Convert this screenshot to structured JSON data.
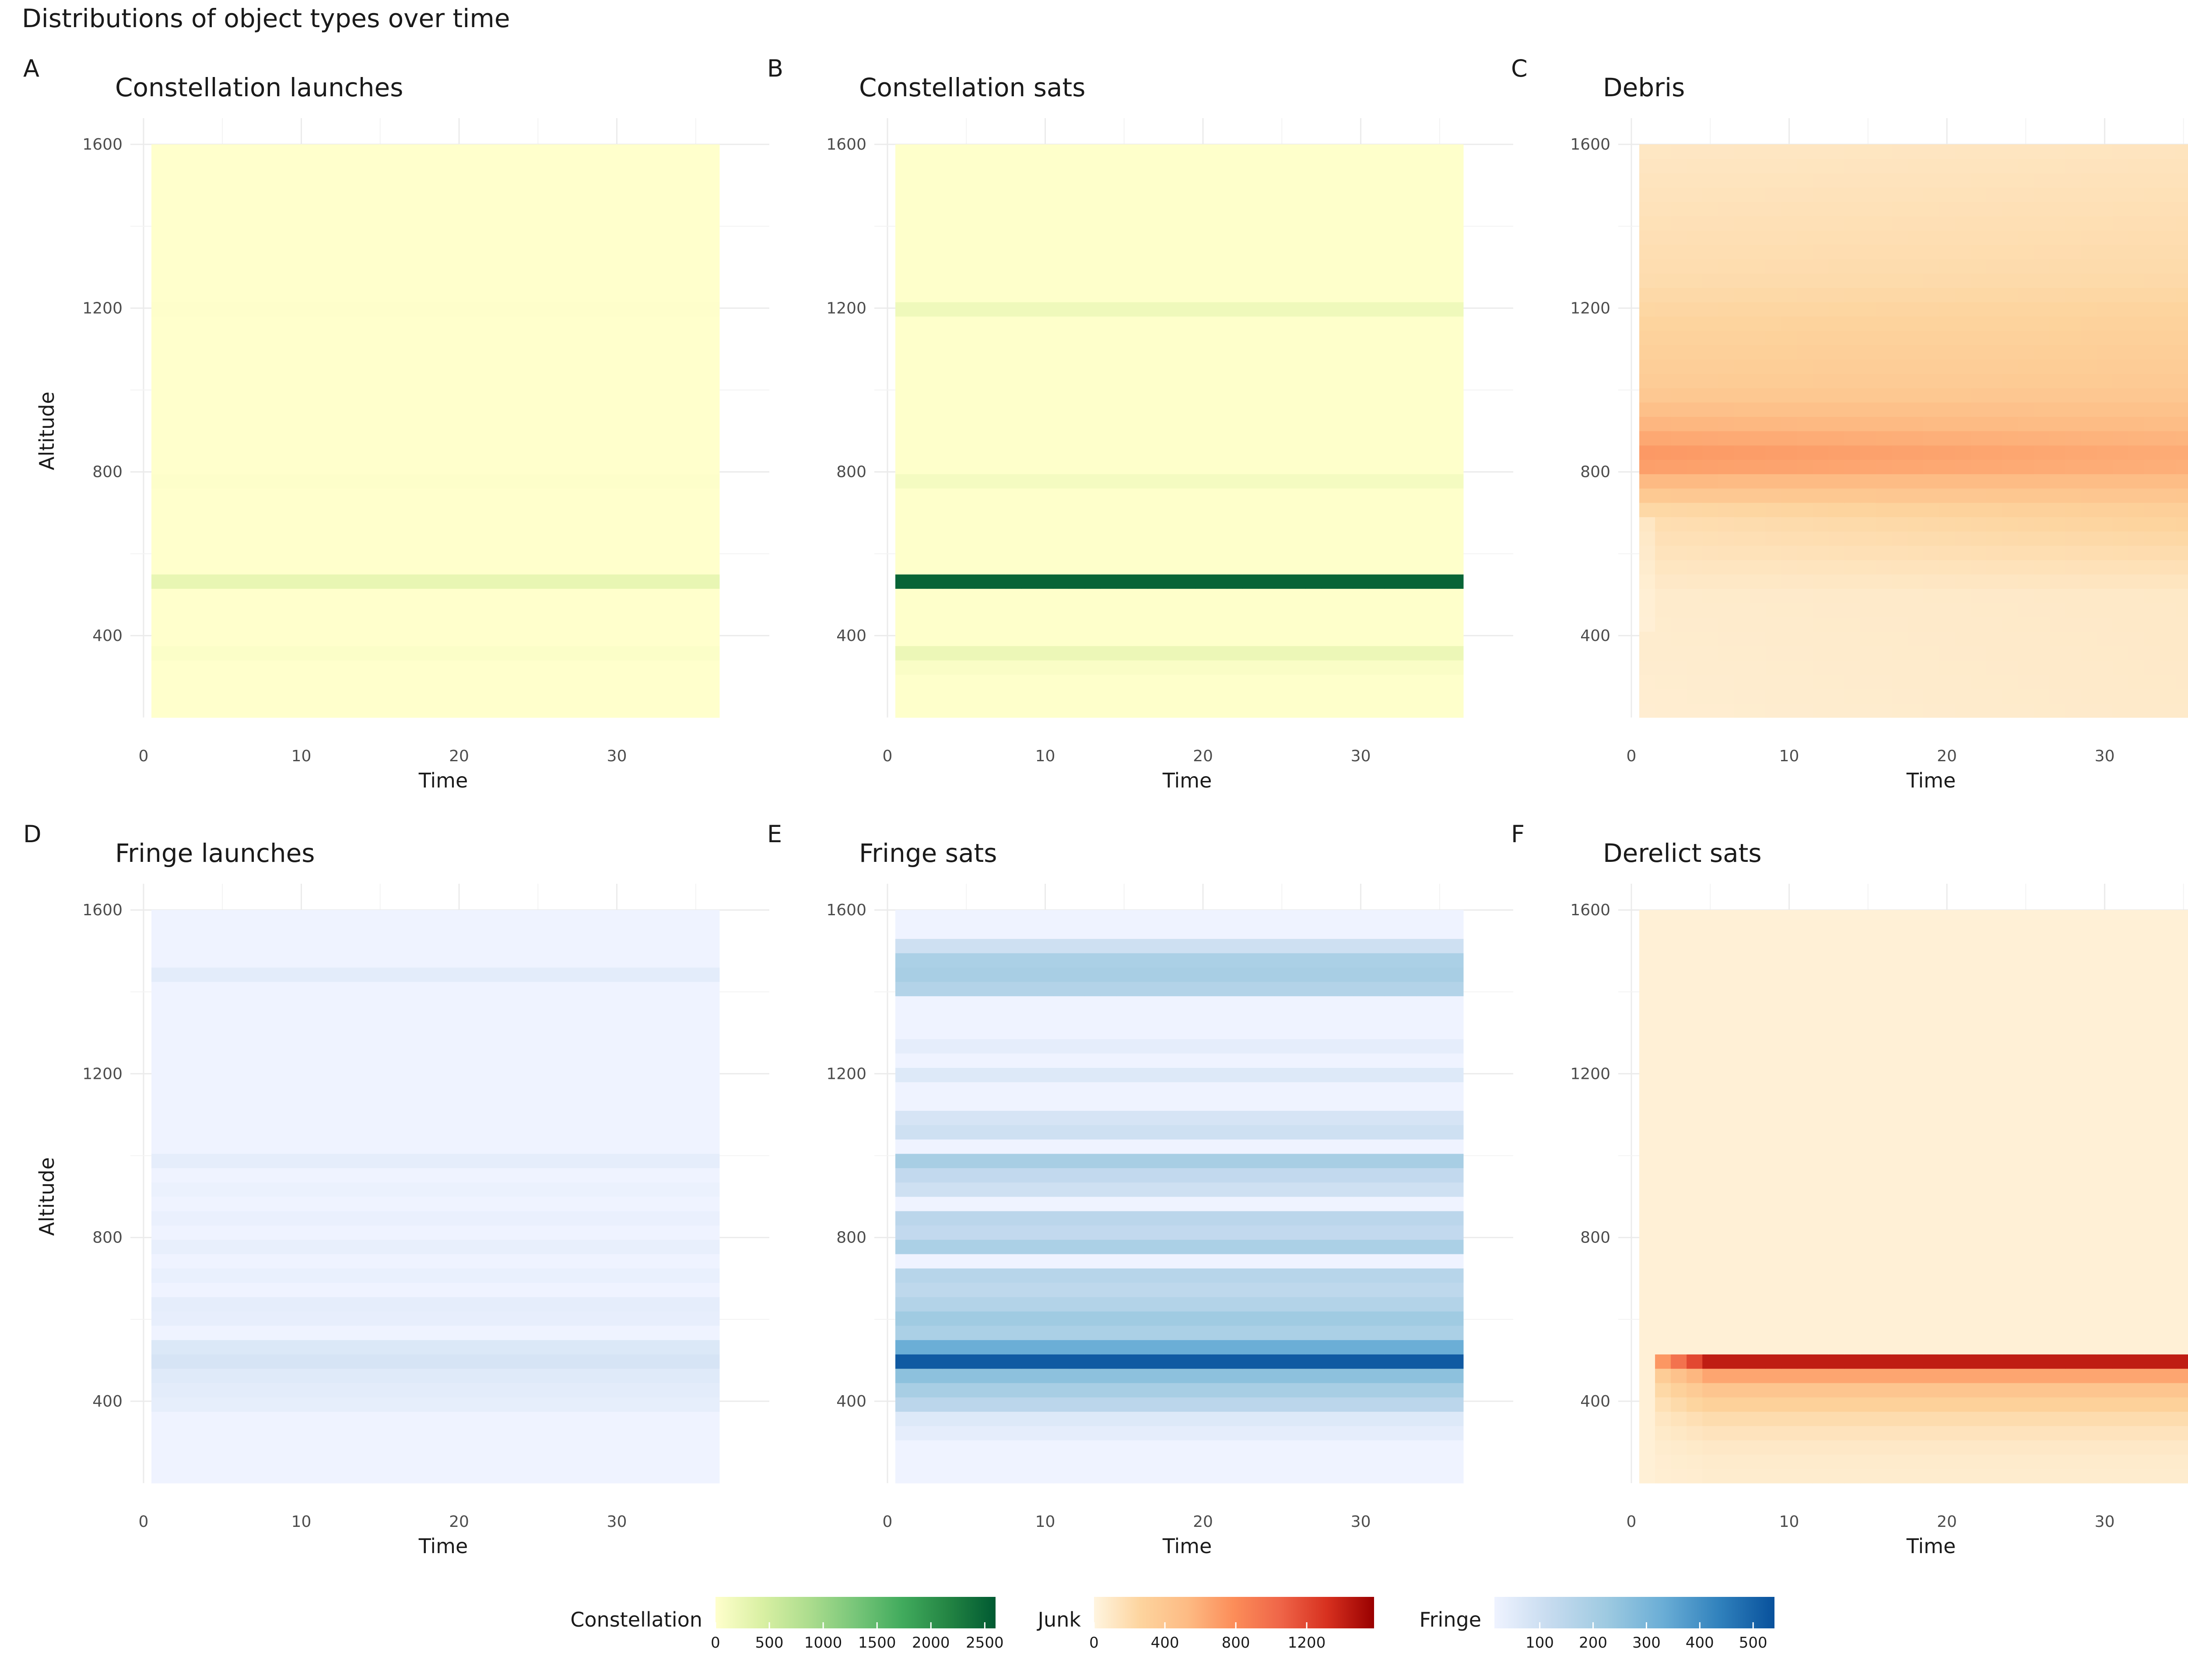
{
  "figure_title": "Distributions of object types over time",
  "chart_data": [
    {
      "type": "heatmap",
      "tag": "A",
      "title": "Constellation launches",
      "xlabel": "Time",
      "ylabel": "Altitude",
      "xlim": [
        0,
        38
      ],
      "ylim": [
        200,
        1600
      ],
      "xticks": [
        0,
        10,
        20,
        30
      ],
      "yticks": [
        400,
        800,
        1200,
        1600
      ],
      "time_range": [
        1,
        36
      ],
      "altitude_range": [
        200,
        1600
      ],
      "bin_height": 35,
      "scale": "Constellation",
      "bands": [
        {
          "altitude": 535,
          "value": 260
        },
        {
          "altitude": 360,
          "value": 40
        },
        {
          "altitude": 780,
          "value": 20
        },
        {
          "altitude": 1190,
          "value": 15
        }
      ],
      "background_value": 5
    },
    {
      "type": "heatmap",
      "tag": "B",
      "title": "Constellation sats",
      "xlabel": "Time",
      "ylabel": "",
      "xlim": [
        0,
        38
      ],
      "ylim": [
        200,
        1600
      ],
      "xticks": [
        0,
        10,
        20,
        30
      ],
      "yticks": [
        400,
        800,
        1200,
        1600
      ],
      "time_range": [
        1,
        36
      ],
      "altitude_range": [
        200,
        1600
      ],
      "bin_height": 35,
      "scale": "Constellation",
      "bands": [
        {
          "altitude": 535,
          "value": 2500
        },
        {
          "altitude": 360,
          "value": 220
        },
        {
          "altitude": 1200,
          "value": 180
        },
        {
          "altitude": 780,
          "value": 120
        },
        {
          "altitude": 325,
          "value": 60
        }
      ],
      "background_value": 10
    },
    {
      "type": "heatmap",
      "tag": "C",
      "title": "Debris",
      "xlabel": "Time",
      "ylabel": "",
      "xlim": [
        0,
        38
      ],
      "ylim": [
        200,
        1600
      ],
      "xticks": [
        0,
        10,
        20,
        30
      ],
      "yticks": [
        400,
        800,
        1200,
        1600
      ],
      "time_range": [
        1,
        36
      ],
      "altitude_range": [
        200,
        1600
      ],
      "bin_height": 35,
      "scale": "Junk",
      "profile_early": [
        {
          "altitude": 200,
          "value": 60
        },
        {
          "altitude": 500,
          "value": 80
        },
        {
          "altitude": 700,
          "value": 200
        },
        {
          "altitude": 830,
          "value": 760
        },
        {
          "altitude": 1000,
          "value": 360
        },
        {
          "altitude": 1270,
          "value": 200
        },
        {
          "altitude": 1600,
          "value": 110
        }
      ],
      "profile_late": [
        {
          "altitude": 200,
          "value": 90
        },
        {
          "altitude": 500,
          "value": 100
        },
        {
          "altitude": 700,
          "value": 300
        },
        {
          "altitude": 830,
          "value": 640
        },
        {
          "altitude": 1000,
          "value": 380
        },
        {
          "altitude": 1270,
          "value": 220
        },
        {
          "altitude": 1600,
          "value": 130
        }
      ]
    },
    {
      "type": "heatmap",
      "tag": "D",
      "title": "Fringe launches",
      "xlabel": "Time",
      "ylabel": "Altitude",
      "xlim": [
        0,
        38
      ],
      "ylim": [
        200,
        1600
      ],
      "xticks": [
        0,
        10,
        20,
        30
      ],
      "yticks": [
        400,
        800,
        1200,
        1600
      ],
      "time_range": [
        1,
        36
      ],
      "altitude_range": [
        200,
        1600
      ],
      "bin_height": 35,
      "scale": "Fringe",
      "bands": [
        {
          "altitude": 500,
          "value": 80
        },
        {
          "altitude": 535,
          "value": 65
        },
        {
          "altitude": 465,
          "value": 55
        },
        {
          "altitude": 430,
          "value": 45
        },
        {
          "altitude": 395,
          "value": 38
        },
        {
          "altitude": 1440,
          "value": 45
        },
        {
          "altitude": 990,
          "value": 40
        },
        {
          "altitude": 640,
          "value": 40
        },
        {
          "altitude": 605,
          "value": 35
        },
        {
          "altitude": 710,
          "value": 30
        },
        {
          "altitude": 780,
          "value": 32
        },
        {
          "altitude": 850,
          "value": 28
        },
        {
          "altitude": 920,
          "value": 25
        }
      ],
      "background_value": 8
    },
    {
      "type": "heatmap",
      "tag": "E",
      "title": "Fringe sats",
      "xlabel": "Time",
      "ylabel": "",
      "xlim": [
        0,
        38
      ],
      "ylim": [
        200,
        1600
      ],
      "xticks": [
        0,
        10,
        20,
        30
      ],
      "yticks": [
        400,
        800,
        1200,
        1600
      ],
      "time_range": [
        1,
        36
      ],
      "altitude_range": [
        200,
        1600
      ],
      "bin_height": 35,
      "scale": "Fringe",
      "bands": [
        {
          "altitude": 500,
          "value": 520
        },
        {
          "altitude": 535,
          "value": 330
        },
        {
          "altitude": 465,
          "value": 260
        },
        {
          "altitude": 430,
          "value": 200
        },
        {
          "altitude": 395,
          "value": 150
        },
        {
          "altitude": 570,
          "value": 190
        },
        {
          "altitude": 605,
          "value": 220
        },
        {
          "altitude": 640,
          "value": 170
        },
        {
          "altitude": 675,
          "value": 140
        },
        {
          "altitude": 710,
          "value": 160
        },
        {
          "altitude": 780,
          "value": 190
        },
        {
          "altitude": 815,
          "value": 130
        },
        {
          "altitude": 850,
          "value": 150
        },
        {
          "altitude": 920,
          "value": 100
        },
        {
          "altitude": 955,
          "value": 130
        },
        {
          "altitude": 990,
          "value": 200
        },
        {
          "altitude": 1060,
          "value": 100
        },
        {
          "altitude": 1095,
          "value": 80
        },
        {
          "altitude": 1200,
          "value": 60
        },
        {
          "altitude": 1270,
          "value": 40
        },
        {
          "altitude": 1405,
          "value": 170
        },
        {
          "altitude": 1440,
          "value": 200
        },
        {
          "altitude": 1475,
          "value": 190
        },
        {
          "altitude": 1510,
          "value": 100
        },
        {
          "altitude": 360,
          "value": 60
        },
        {
          "altitude": 325,
          "value": 40
        }
      ],
      "background_value": 15
    },
    {
      "type": "heatmap",
      "tag": "F",
      "title": "Derelict sats",
      "xlabel": "Time",
      "ylabel": "",
      "xlim": [
        0,
        38
      ],
      "ylim": [
        200,
        1600
      ],
      "xticks": [
        0,
        10,
        20,
        30
      ],
      "yticks": [
        400,
        800,
        1200,
        1600
      ],
      "time_range": [
        1,
        36
      ],
      "altitude_range": [
        200,
        1600
      ],
      "bin_height": 35,
      "scale": "Junk",
      "bands": [
        {
          "altitude": 500,
          "value": 1420
        },
        {
          "altitude": 465,
          "value": 650
        },
        {
          "altitude": 430,
          "value": 420
        },
        {
          "altitude": 395,
          "value": 300
        },
        {
          "altitude": 360,
          "value": 200
        },
        {
          "altitude": 325,
          "value": 140
        },
        {
          "altitude": 290,
          "value": 100
        },
        {
          "altitude": 255,
          "value": 80
        },
        {
          "altitude": 220,
          "value": 70
        }
      ],
      "onset_time": 2,
      "background_value": 40
    }
  ],
  "legends": [
    {
      "title": "Constellation",
      "min": 0,
      "max": 2600,
      "ticks": [
        0,
        500,
        1000,
        1500,
        2000,
        2500
      ],
      "colors": [
        "#ffffcc",
        "#d9f0a3",
        "#addd8e",
        "#78c679",
        "#41ab5d",
        "#238443",
        "#005a32"
      ]
    },
    {
      "title": "Junk",
      "min": 0,
      "max": 1580,
      "ticks": [
        0,
        400,
        800,
        1200
      ],
      "colors": [
        "#fff5e0",
        "#fdd49e",
        "#fdbb84",
        "#fc8d59",
        "#ef6548",
        "#d7301f",
        "#990000"
      ]
    },
    {
      "title": "Fringe",
      "min": 15,
      "max": 540,
      "ticks": [
        100,
        200,
        300,
        400,
        500
      ],
      "colors": [
        "#eff3ff",
        "#c6dbef",
        "#9ecae1",
        "#6baed6",
        "#3182bd",
        "#08519c"
      ]
    }
  ]
}
